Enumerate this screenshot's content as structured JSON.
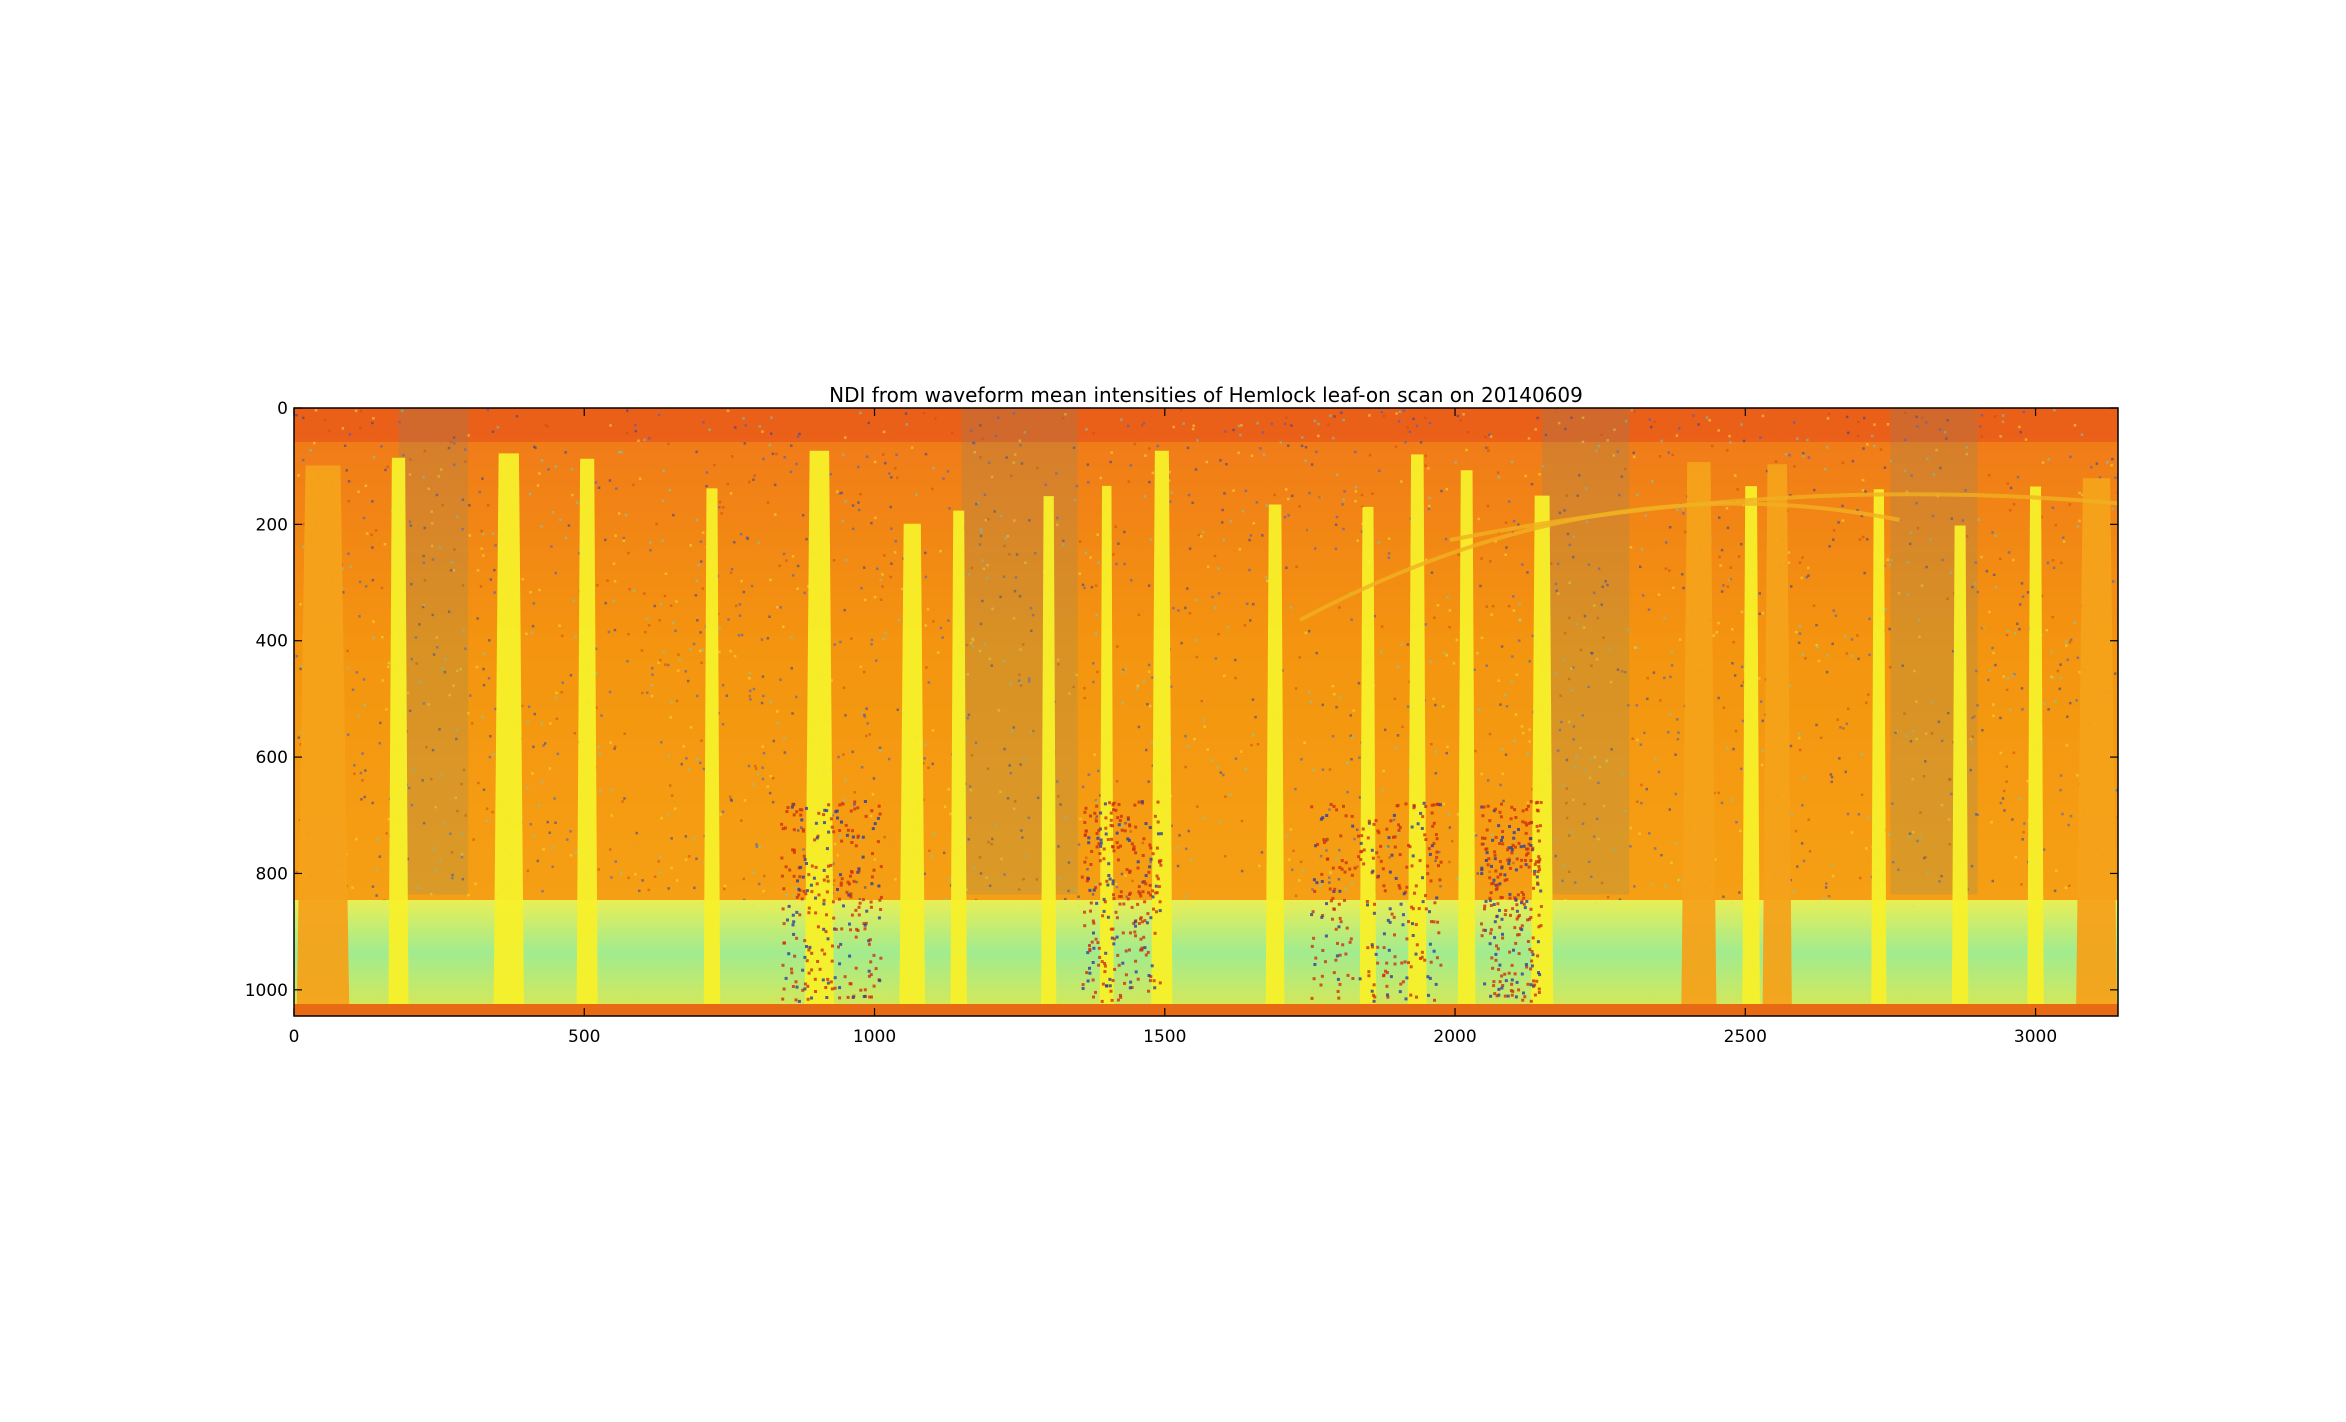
{
  "chart_data": {
    "type": "heatmap",
    "title": "NDI from waveform mean intensities of Hemlock leaf-on scan on 20140609",
    "xlabel": "",
    "ylabel": "",
    "xlim": [
      0,
      3142
    ],
    "ylim": [
      1045,
      0
    ],
    "x_ticks": [
      0,
      500,
      1000,
      1500,
      2000,
      2500,
      3000
    ],
    "y_ticks": [
      0,
      200,
      400,
      600,
      800,
      1000
    ],
    "x_tick_labels": [
      "0",
      "500",
      "1000",
      "1500",
      "2000",
      "2500",
      "3000"
    ],
    "y_tick_labels": [
      "0",
      "200",
      "400",
      "600",
      "800",
      "1000"
    ],
    "colormap": "jet",
    "colors": {
      "background": "#f28a12",
      "canopy": "#f77a0e",
      "trunk_light": "#f7f02a",
      "trunk_warm": "#f4a21a",
      "ground_cyan": "#8ff28a",
      "ground_yellow": "#e8f55a",
      "shrub_red": "#d0300e",
      "noise_blue": "#2a3da0",
      "axes_frame": "#000000"
    },
    "trunks": [
      {
        "x": 50,
        "w": 80,
        "c": "trunk_warm"
      },
      {
        "x": 180,
        "w": 24,
        "c": "trunk_light"
      },
      {
        "x": 370,
        "w": 42,
        "c": "trunk_light"
      },
      {
        "x": 505,
        "w": 26,
        "c": "trunk_light"
      },
      {
        "x": 720,
        "w": 18,
        "c": "trunk_light"
      },
      {
        "x": 905,
        "w": 40,
        "c": "trunk_light"
      },
      {
        "x": 1065,
        "w": 34,
        "c": "trunk_light"
      },
      {
        "x": 1145,
        "w": 18,
        "c": "trunk_light"
      },
      {
        "x": 1300,
        "w": 16,
        "c": "trunk_light"
      },
      {
        "x": 1400,
        "w": 14,
        "c": "trunk_light"
      },
      {
        "x": 1495,
        "w": 26,
        "c": "trunk_light"
      },
      {
        "x": 1690,
        "w": 22,
        "c": "trunk_light"
      },
      {
        "x": 1850,
        "w": 18,
        "c": "trunk_light"
      },
      {
        "x": 1935,
        "w": 22,
        "c": "trunk_light"
      },
      {
        "x": 2020,
        "w": 20,
        "c": "trunk_light"
      },
      {
        "x": 2150,
        "w": 28,
        "c": "trunk_light"
      },
      {
        "x": 2420,
        "w": 50,
        "c": "trunk_warm"
      },
      {
        "x": 2510,
        "w": 20,
        "c": "trunk_light"
      },
      {
        "x": 2555,
        "w": 40,
        "c": "trunk_warm"
      },
      {
        "x": 2730,
        "w": 16,
        "c": "trunk_light"
      },
      {
        "x": 2870,
        "w": 18,
        "c": "trunk_light"
      },
      {
        "x": 3000,
        "w": 18,
        "c": "trunk_light"
      },
      {
        "x": 3105,
        "w": 60,
        "c": "trunk_warm"
      }
    ]
  }
}
